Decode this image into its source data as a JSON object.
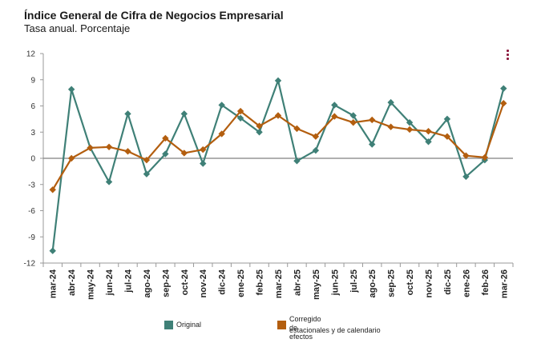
{
  "header": {
    "title": "Índice General de Cifra de Negocios Empresarial",
    "subtitle": "Tasa anual. Porcentaje"
  },
  "menu": {
    "icon": "vertical-dots-menu-icon"
  },
  "colors": {
    "original": "#3f8077",
    "corregido": "#b35e0f",
    "zero_line": "#808080",
    "grid": "#d0d0d0"
  },
  "legend": {
    "original_label": "Original",
    "corregido_label_line1": "Corregido de efectos",
    "corregido_label_line2": "estacionales y de calendario"
  },
  "chart_data": {
    "type": "line",
    "categories": [
      "mar-24",
      "abr-24",
      "may-24",
      "jun-24",
      "jul-24",
      "ago-24",
      "sep-24",
      "oct-24",
      "nov-24",
      "dic-24",
      "ene-25",
      "feb-25",
      "mar-25",
      "abr-25",
      "may-25",
      "jun-25",
      "jul-25",
      "ago-25",
      "sep-25",
      "oct-25",
      "nov-25",
      "dic-25",
      "ene-26",
      "feb-26",
      "mar-26"
    ],
    "ylim": [
      -12,
      12
    ],
    "yticks": [
      "12",
      "9",
      "6",
      "3",
      "0",
      "-3",
      "-6",
      "-9",
      "-12"
    ],
    "grid": false,
    "legend_position": "bottom",
    "series": [
      {
        "name": "Original",
        "color": "#3f8077",
        "marker": "diamond",
        "values": [
          -10.6,
          7.9,
          1.2,
          -2.7,
          5.1,
          -1.8,
          0.5,
          5.1,
          -0.6,
          6.1,
          4.6,
          3.0,
          8.9,
          -0.3,
          0.9,
          6.1,
          4.9,
          1.6,
          6.4,
          4.1,
          1.9,
          4.5,
          -2.1,
          -0.2,
          8.0
        ]
      },
      {
        "name": "Corregido de efectos estacionales y de calendario",
        "color": "#b35e0f",
        "marker": "diamond",
        "values": [
          -3.6,
          0.0,
          1.2,
          1.3,
          0.8,
          -0.2,
          2.3,
          0.6,
          1.0,
          2.8,
          5.4,
          3.7,
          4.9,
          3.4,
          2.5,
          4.8,
          4.1,
          4.4,
          3.6,
          3.3,
          3.1,
          2.5,
          0.3,
          0.1,
          6.3
        ]
      }
    ]
  }
}
